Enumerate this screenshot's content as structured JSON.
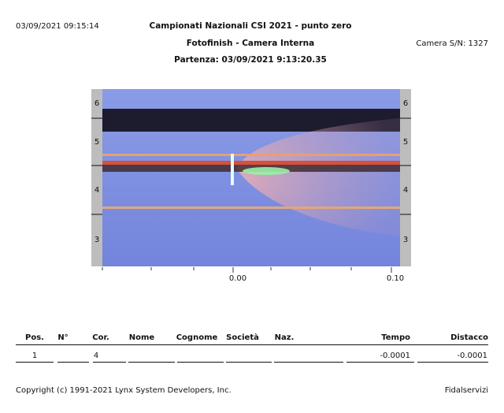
{
  "header": {
    "timestamp": "03/09/2021 09:15:14",
    "title": "Campionati Nazionali CSI 2021 - punto zero",
    "subtitle": "Fotofinish - Camera Interna",
    "start": "Partenza: 03/09/2021 9:13:20.35",
    "camera": "Camera S/N: 1327"
  },
  "image": {
    "lanes": [
      "6",
      "5",
      "4",
      "3"
    ],
    "time_labels": [
      "0.00",
      "0.10"
    ]
  },
  "table": {
    "columns": [
      "Pos.",
      "N°",
      "Cor.",
      "Nome",
      "Cognome",
      "Società",
      "Naz.",
      "Tempo",
      "Distacco"
    ],
    "rows": [
      {
        "pos": "1",
        "lane": "4",
        "time": "-0.0001",
        "gap": "-0.0001"
      }
    ]
  },
  "footer": {
    "copyright": "Copyright (c) 1991-2021 Lynx System Developers, Inc.",
    "brand": "Fidalservizi"
  }
}
